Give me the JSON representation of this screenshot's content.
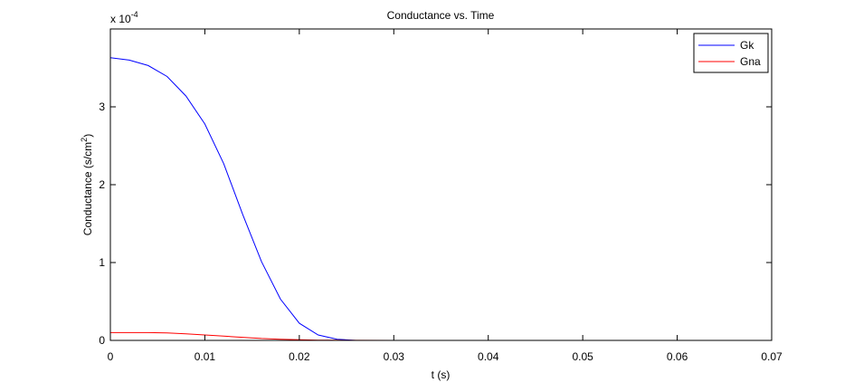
{
  "chart_data": {
    "type": "line",
    "title": "Conductance vs. Time",
    "xlabel": "t (s)",
    "ylabel_main": "Conductance (s/cm",
    "ylabel_sup": "2",
    "ylabel_close": ")",
    "y_multiplier_base": "x 10",
    "y_multiplier_exp": "-4",
    "xlim": [
      0,
      0.07
    ],
    "ylim": [
      0,
      4
    ],
    "x_ticks": [
      0,
      0.01,
      0.02,
      0.03,
      0.04,
      0.05,
      0.06,
      0.07
    ],
    "x_tick_labels": [
      "0",
      "0.01",
      "0.02",
      "0.03",
      "0.04",
      "0.05",
      "0.06",
      "0.07"
    ],
    "y_ticks": [
      0,
      1,
      2,
      3
    ],
    "y_tick_labels": [
      "0",
      "1",
      "2",
      "3"
    ],
    "grid": false,
    "legend_position": "top-right",
    "series": [
      {
        "name": "Gk",
        "color": "#0000ff",
        "x": [
          0,
          0.002,
          0.004,
          0.006,
          0.008,
          0.01,
          0.012,
          0.014,
          0.016,
          0.018,
          0.02,
          0.022,
          0.024,
          0.026,
          0.03,
          0.035,
          0.04,
          0.05,
          0.06,
          0.0685
        ],
        "values": [
          3.63,
          3.6,
          3.53,
          3.39,
          3.14,
          2.78,
          2.27,
          1.62,
          1.01,
          0.53,
          0.22,
          0.07,
          0.015,
          0.0,
          0,
          0,
          0,
          0,
          0,
          0
        ]
      },
      {
        "name": "Gna",
        "color": "#ff0000",
        "x": [
          0,
          0.002,
          0.004,
          0.006,
          0.008,
          0.01,
          0.012,
          0.014,
          0.016,
          0.018,
          0.02,
          0.022,
          0.024,
          0.026,
          0.03,
          0.04,
          0.05,
          0.06,
          0.0685
        ],
        "values": [
          0.1,
          0.1,
          0.1,
          0.095,
          0.085,
          0.07,
          0.055,
          0.04,
          0.025,
          0.015,
          0.008,
          0.004,
          0.002,
          0.001,
          0,
          0,
          0,
          0,
          0
        ]
      }
    ]
  }
}
